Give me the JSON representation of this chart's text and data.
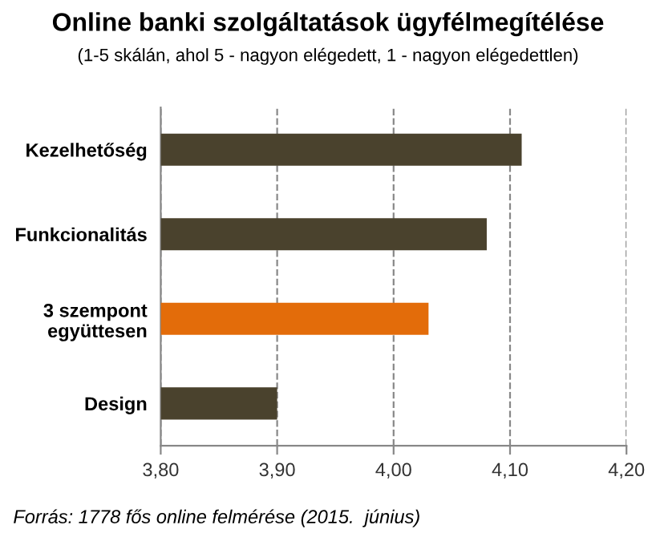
{
  "chart_data": {
    "type": "bar",
    "orientation": "horizontal",
    "title": "Online banki szolgáltatások ügyfélmegítélése",
    "subtitle": "(1-5 skálán, ahol 5 - nagyon elégedett, 1 - nagyon elégedettlen)",
    "categories": [
      "Kezelhetőség",
      "Funkcionalitás",
      "3 szempont\negyüttesen",
      "Design"
    ],
    "values": [
      4.11,
      4.08,
      4.03,
      3.9
    ],
    "colors": [
      "#4a422d",
      "#4a422d",
      "#e36c0a",
      "#4a422d"
    ],
    "xlim": [
      3.8,
      4.2
    ],
    "xticks": [
      {
        "value": 3.8,
        "label": "3,80"
      },
      {
        "value": 3.9,
        "label": "3,90"
      },
      {
        "value": 4.0,
        "label": "4,00"
      },
      {
        "value": 4.1,
        "label": "4,10"
      },
      {
        "value": 4.2,
        "label": "4,20"
      }
    ],
    "grid": "x",
    "annotations": [
      "Forrás: 1778 fős online felmérése (2015.  június)"
    ]
  }
}
